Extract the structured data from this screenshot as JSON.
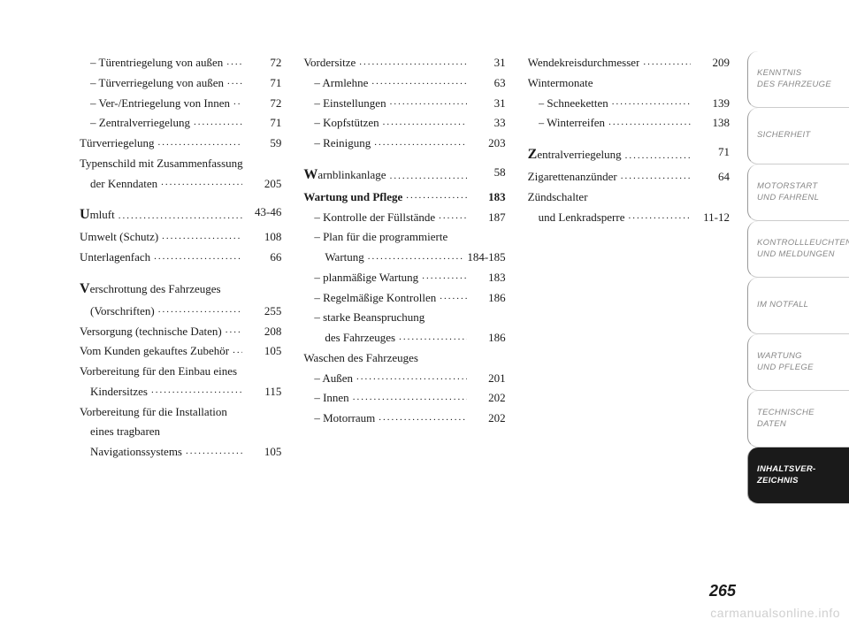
{
  "columns": [
    [
      {
        "label": "– Türentriegelung von außen",
        "page": "72",
        "indent": 1
      },
      {
        "label": "– Türverriegelung von außen",
        "page": "71",
        "indent": 1
      },
      {
        "label": "– Ver-/Entriegelung von Innen",
        "page": "72",
        "indent": 1
      },
      {
        "label": "– Zentralverriegelung",
        "page": "71",
        "indent": 1
      },
      {
        "label": "Türverriegelung",
        "page": "59"
      },
      {
        "label": "Typenschild mit Zusammenfassung",
        "multiline": true,
        "cont": "der Kenndaten",
        "page": "205",
        "indent_cont": 1
      },
      {
        "label": "Umluft",
        "page": "43-46",
        "dropcap": "U"
      },
      {
        "label": "Umwelt (Schutz)",
        "page": "108"
      },
      {
        "label": "Unterlagenfach",
        "page": "66"
      },
      {
        "label": "Verschrottung des Fahrzeuges",
        "multiline": true,
        "cont": "(Vorschriften)",
        "page": "255",
        "dropcap": "V",
        "indent_cont": 1
      },
      {
        "label": "Versorgung (technische Daten)",
        "page": "208"
      },
      {
        "label": "Vom Kunden gekauftes Zubehör",
        "page": "105"
      },
      {
        "label": "Vorbereitung für den Einbau eines",
        "multiline": true,
        "cont": "Kindersitzes",
        "page": "115",
        "indent_cont": 1
      },
      {
        "label": "Vorbereitung für die Installation",
        "multitriple": true,
        "cont": "eines tragbaren",
        "cont2": "Navigationssystems",
        "page": "105",
        "indent_cont": 1
      }
    ],
    [
      {
        "label": "Vordersitze",
        "page": "31"
      },
      {
        "label": "– Armlehne",
        "page": "63",
        "indent": 1
      },
      {
        "label": "– Einstellungen",
        "page": "31",
        "indent": 1
      },
      {
        "label": "– Kopfstützen",
        "page": "33",
        "indent": 1
      },
      {
        "label": "– Reinigung",
        "page": "203",
        "indent": 1
      },
      {
        "label": "Warnblinkanlage",
        "page": "58",
        "dropcap": "W"
      },
      {
        "label": "Wartung und Pflege",
        "page": "183",
        "bold": true
      },
      {
        "label": "– Kontrolle der Füllstände",
        "page": "187",
        "indent": 1
      },
      {
        "label": "– Plan für die programmierte",
        "multiline": true,
        "cont": "Wartung",
        "page": "184-185",
        "indent": 1,
        "indent_cont": 2
      },
      {
        "label": "– planmäßige Wartung",
        "page": "183",
        "indent": 1
      },
      {
        "label": "– Regelmäßige Kontrollen",
        "page": "186",
        "indent": 1
      },
      {
        "label": "– starke Beanspruchung",
        "multiline": true,
        "cont": "des Fahrzeuges",
        "page": "186",
        "indent": 1,
        "indent_cont": 2
      },
      {
        "label": "Waschen des Fahrzeuges",
        "nopage": true
      },
      {
        "label": "– Außen",
        "page": "201",
        "indent": 1
      },
      {
        "label": "– Innen",
        "page": "202",
        "indent": 1
      },
      {
        "label": "– Motorraum",
        "page": "202",
        "indent": 1
      }
    ],
    [
      {
        "label": "Wendekreisdurchmesser",
        "page": "209"
      },
      {
        "label": "Wintermonate",
        "nopage": true
      },
      {
        "label": "– Schneeketten",
        "page": "139",
        "indent": 1
      },
      {
        "label": "– Winterreifen",
        "page": "138",
        "indent": 1
      },
      {
        "label": "Zentralverriegelung",
        "page": "71",
        "dropcap": "Z"
      },
      {
        "label": "Zigarettenanzünder",
        "page": "64"
      },
      {
        "label": "Zündschalter",
        "multiline": true,
        "cont": "und Lenkradsperre",
        "page": "11-12",
        "indent_cont": 1
      }
    ]
  ],
  "sidebar": [
    {
      "line1": "KENNTNIS",
      "line2": "DES FAHRZEUGE"
    },
    {
      "line1": "SICHERHEIT",
      "line2": ""
    },
    {
      "line1": "MOTORSTART",
      "line2": "UND FAHRENL"
    },
    {
      "line1": "KONTROLLLEUCHTEN",
      "line2": "UND MELDUNGEN"
    },
    {
      "line1": "IM NOTFALL",
      "line2": ""
    },
    {
      "line1": "WARTUNG",
      "line2": "UND PFLEGE"
    },
    {
      "line1": "TECHNISCHE",
      "line2": "DATEN"
    },
    {
      "line1": "INHALTSVER-",
      "line2": "ZEICHNIS",
      "active": true
    }
  ],
  "pageNumber": "265",
  "watermark": "carmanualsonline.info"
}
